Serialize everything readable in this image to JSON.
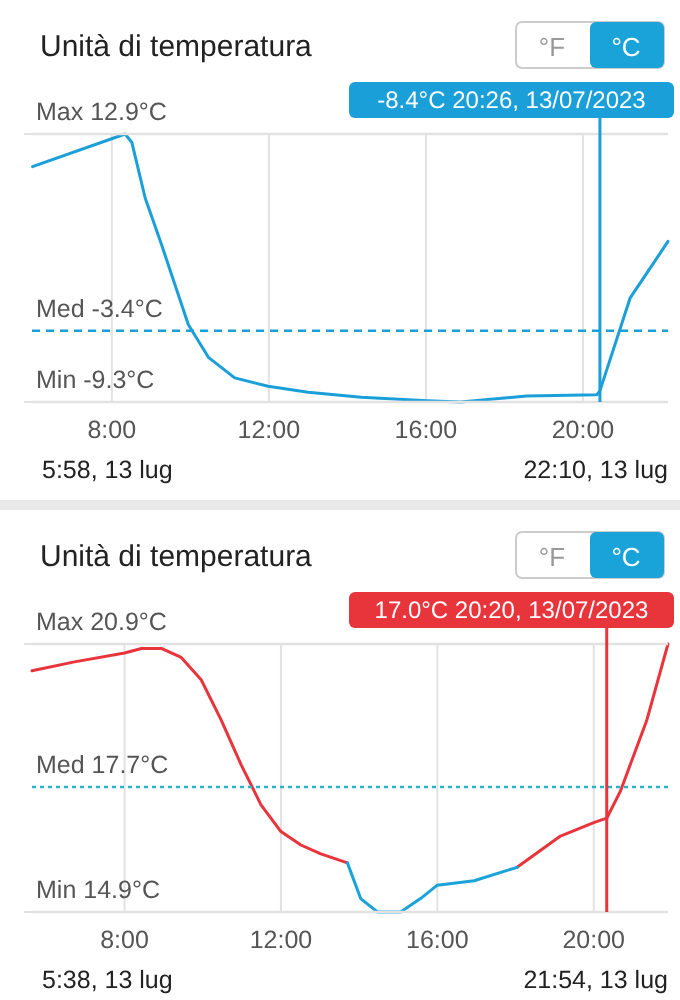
{
  "chart_data": [
    {
      "type": "line",
      "title": "Unità di temperatura",
      "xlim": [
        5.967,
        22.167
      ],
      "xticks": [
        {
          "value": 8,
          "label": "8:00"
        },
        {
          "value": 12,
          "label": "12:00"
        },
        {
          "value": 16,
          "label": "16:00"
        },
        {
          "value": 20,
          "label": "20:00"
        }
      ],
      "ylim": [
        -9.3,
        12.9
      ],
      "yticks": [
        {
          "value": -9.3,
          "label": null
        },
        {
          "value": 12.9,
          "label": null
        }
      ],
      "grid": "x",
      "marker": "none",
      "x": [
        5.98,
        8.34,
        8.51,
        8.85,
        9.27,
        9.95,
        10.46,
        11.13,
        11.98,
        13.0,
        14.35,
        16.04,
        16.88,
        18.57,
        20.35,
        20.43,
        21.2,
        21.55,
        22.167
      ],
      "series": [
        {
          "color": "#1a9fd9",
          "line_style": "solid",
          "values": [
            10.2,
            12.9,
            12.2,
            7.6,
            3.7,
            -2.9,
            -5.6,
            -7.3,
            -8.0,
            -8.5,
            -8.9,
            -9.2,
            -9.3,
            -8.8,
            -8.7,
            -8.4,
            -0.7,
            1.0,
            4.0
          ]
        }
      ],
      "ref_lines": [
        {
          "axis": "y",
          "value": 12.9,
          "label": "Max 12.9°C",
          "color": "#e2e2e2",
          "line_style": "solid"
        },
        {
          "axis": "y",
          "value": -3.4,
          "label": "Med -3.4°C",
          "color": "#1a9fd9",
          "line_style": "dashed"
        },
        {
          "axis": "y",
          "value": -9.3,
          "label": "Min -9.3°C",
          "color": "#e2e2e2",
          "line_style": "solid"
        },
        {
          "axis": "x",
          "value": 20.433,
          "label": "-8.4°C 20:26,  13/07/2023",
          "color": "#1a9fd9",
          "line_style": "solid"
        }
      ],
      "annotations": [
        "5:58,  13 lug",
        "22:10,  13 lug",
        "°F",
        "°C"
      ]
    },
    {
      "type": "line",
      "title": "Unità di temperatura",
      "xlim": [
        5.633,
        21.9
      ],
      "xticks": [
        {
          "value": 8,
          "label": "8:00"
        },
        {
          "value": 12,
          "label": "12:00"
        },
        {
          "value": 16,
          "label": "16:00"
        },
        {
          "value": 20,
          "label": "20:00"
        }
      ],
      "ylim": [
        14.9,
        20.9
      ],
      "yticks": [
        {
          "value": 14.9,
          "label": null
        },
        {
          "value": 20.9,
          "label": null
        }
      ],
      "grid": "x",
      "marker": "none",
      "x": [
        5.633,
        6.72,
        8.0,
        8.43,
        8.94,
        9.45,
        9.96,
        10.47,
        10.98,
        11.49,
        12.0,
        12.51,
        13.02,
        13.7,
        14.04,
        14.47,
        15.06,
        15.57,
        16.0,
        16.94,
        18.04,
        19.15,
        20.0,
        20.333,
        20.68,
        21.36,
        21.9
      ],
      "series": [
        {
          "color": "#e8343b",
          "line_style": "solid",
          "values": [
            20.3,
            20.5,
            20.7,
            20.8,
            20.8,
            20.6,
            20.1,
            19.2,
            18.2,
            17.3,
            16.7,
            16.4,
            16.2,
            16.0,
            null,
            null,
            null,
            null,
            null,
            null,
            15.9,
            16.6,
            16.9,
            17.0,
            17.6,
            19.2,
            20.9
          ]
        },
        {
          "color": "#1aa3d9",
          "line_style": "solid",
          "values": [
            null,
            null,
            null,
            null,
            null,
            null,
            null,
            null,
            null,
            null,
            null,
            null,
            null,
            16.0,
            15.2,
            14.9,
            14.9,
            15.2,
            15.5,
            15.6,
            15.9,
            null,
            null,
            null,
            null,
            null,
            null
          ]
        }
      ],
      "ref_lines": [
        {
          "axis": "y",
          "value": 20.9,
          "label": "Max 20.9°C",
          "color": "#e2e2e2",
          "line_style": "solid"
        },
        {
          "axis": "y",
          "value": 17.7,
          "label": "Med 17.7°C",
          "color": "#2bb3c9",
          "line_style": "dotted"
        },
        {
          "axis": "y",
          "value": 14.9,
          "label": "Min 14.9°C",
          "color": "#e2e2e2",
          "line_style": "solid"
        },
        {
          "axis": "x",
          "value": 20.333,
          "label": "17.0°C 20:20,  13/07/2023",
          "color": "#e8343b",
          "line_style": "solid"
        }
      ],
      "annotations": [
        "5:38,  13 lug",
        "21:54,  13 lug",
        "°F",
        "°C"
      ]
    }
  ]
}
